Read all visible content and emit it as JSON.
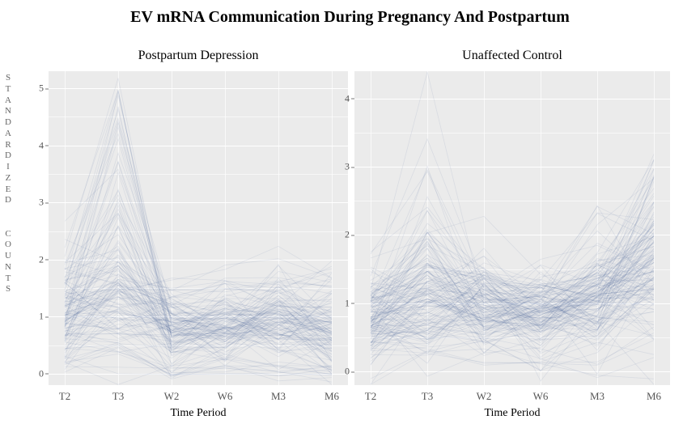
{
  "main_title": "EV mRNA Communication During Pregnancy And Postpartum",
  "y_axis_label": "STANDARDIZED COUNTS",
  "x_axis_label": "Time Period",
  "categories": [
    "T2",
    "T3",
    "W2",
    "W6",
    "M3",
    "M6"
  ],
  "line_color": "#3b5998",
  "background_color": "#ebebeb",
  "gridline_color": "#ffffff",
  "line_opacity": 0.1,
  "line_width": 0.8,
  "title_fontsize": 20,
  "subtitle_fontsize": 16,
  "tick_fontsize": 12,
  "axis_label_fontsize": 14,
  "panels": [
    {
      "title": "Postpartum Depression",
      "ylim": [
        -0.2,
        5.3
      ],
      "yticks": [
        0,
        1,
        2,
        3,
        4,
        5
      ],
      "n_lines": 140,
      "clusters": [
        {
          "weight": 0.55,
          "means": [
            1.0,
            1.2,
            0.85,
            0.9,
            1.0,
            0.8
          ],
          "spread": [
            0.45,
            0.55,
            0.25,
            0.3,
            0.35,
            0.45
          ]
        },
        {
          "weight": 0.28,
          "means": [
            1.2,
            2.6,
            0.7,
            0.8,
            0.9,
            0.75
          ],
          "spread": [
            0.5,
            1.1,
            0.3,
            0.3,
            0.3,
            0.35
          ]
        },
        {
          "weight": 0.03,
          "means": [
            1.6,
            4.8,
            0.65,
            0.8,
            0.9,
            0.7
          ],
          "spread": [
            0.3,
            0.3,
            0.15,
            0.15,
            0.15,
            0.2
          ]
        },
        {
          "weight": 0.08,
          "means": [
            0.3,
            0.4,
            0.05,
            0.1,
            0.1,
            0.05
          ],
          "spread": [
            0.25,
            0.3,
            0.08,
            0.1,
            0.1,
            0.08
          ]
        },
        {
          "weight": 0.06,
          "means": [
            1.4,
            1.6,
            1.35,
            1.45,
            1.55,
            1.6
          ],
          "spread": [
            0.3,
            0.3,
            0.25,
            0.25,
            0.25,
            0.25
          ]
        }
      ]
    },
    {
      "title": "Unaffected Control",
      "ylim": [
        -0.2,
        4.4
      ],
      "yticks": [
        0,
        1,
        2,
        3,
        4
      ],
      "n_lines": 160,
      "clusters": [
        {
          "weight": 0.45,
          "means": [
            0.8,
            1.0,
            0.95,
            0.85,
            1.1,
            1.65
          ],
          "spread": [
            0.3,
            0.4,
            0.35,
            0.3,
            0.4,
            0.55
          ]
        },
        {
          "weight": 0.22,
          "means": [
            0.9,
            1.4,
            1.1,
            0.95,
            1.3,
            2.0
          ],
          "spread": [
            0.35,
            0.55,
            0.35,
            0.3,
            0.4,
            0.55
          ]
        },
        {
          "weight": 0.1,
          "means": [
            1.0,
            2.3,
            1.0,
            0.9,
            1.2,
            1.8
          ],
          "spread": [
            0.35,
            0.8,
            0.3,
            0.25,
            0.3,
            0.4
          ]
        },
        {
          "weight": 0.02,
          "means": [
            1.1,
            3.9,
            0.95,
            0.9,
            1.1,
            1.6
          ],
          "spread": [
            0.25,
            0.3,
            0.2,
            0.15,
            0.2,
            0.25
          ]
        },
        {
          "weight": 0.12,
          "means": [
            0.6,
            0.7,
            0.75,
            0.7,
            0.9,
            1.3
          ],
          "spread": [
            0.25,
            0.25,
            0.25,
            0.2,
            0.3,
            0.4
          ]
        },
        {
          "weight": 0.09,
          "means": [
            0.3,
            0.3,
            0.25,
            0.2,
            0.3,
            0.4
          ],
          "spread": [
            0.25,
            0.25,
            0.25,
            0.18,
            0.25,
            0.35
          ]
        }
      ]
    }
  ]
}
